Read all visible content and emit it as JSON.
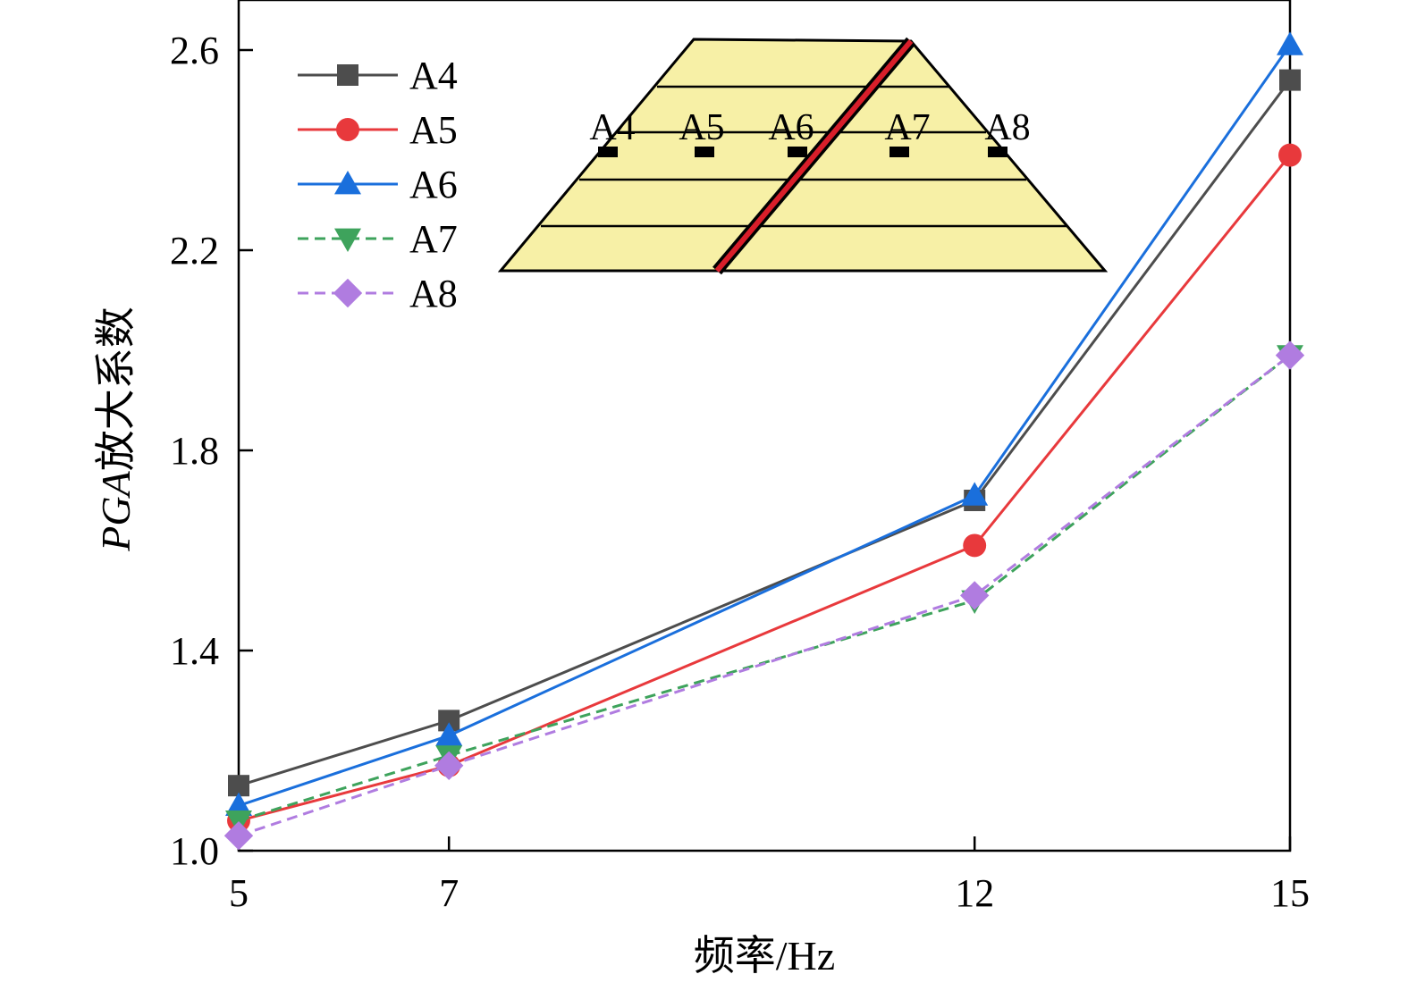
{
  "chart_data": {
    "type": "line",
    "x": [
      5,
      7,
      12,
      15
    ],
    "xticks": [
      "5",
      "7",
      "12",
      "15"
    ],
    "xlim": [
      5,
      15
    ],
    "ylim": [
      1.0,
      2.7
    ],
    "yticks": [
      "1.0",
      "1.4",
      "1.8",
      "2.2",
      "2.6"
    ],
    "xlabel": "频率/Hz",
    "ylabel_italic": "PGA",
    "ylabel_rest": "放大系数",
    "grid": false,
    "legend_position": "top-left",
    "series": [
      {
        "name": "A4",
        "values": [
          1.13,
          1.26,
          1.7,
          2.54
        ],
        "color": "#4d4d4d",
        "marker": "square",
        "dash": "solid"
      },
      {
        "name": "A5",
        "values": [
          1.06,
          1.17,
          1.61,
          2.39
        ],
        "color": "#e8393c",
        "marker": "circle",
        "dash": "solid"
      },
      {
        "name": "A6",
        "values": [
          1.09,
          1.23,
          1.71,
          2.61
        ],
        "color": "#1a6fdc",
        "marker": "triangle-up",
        "dash": "solid"
      },
      {
        "name": "A7",
        "values": [
          1.06,
          1.19,
          1.5,
          1.99
        ],
        "color": "#3ea35c",
        "marker": "triangle-down",
        "dash": "dashed"
      },
      {
        "name": "A8",
        "values": [
          1.03,
          1.17,
          1.51,
          1.99
        ],
        "color": "#b07ce0",
        "marker": "diamond",
        "dash": "dashed"
      }
    ],
    "inset": {
      "fill": "#f7f0a6",
      "fault_color": "#d81e2a",
      "sensor_labels": [
        "A4",
        "A5",
        "A6",
        "A7",
        "A8"
      ]
    }
  }
}
